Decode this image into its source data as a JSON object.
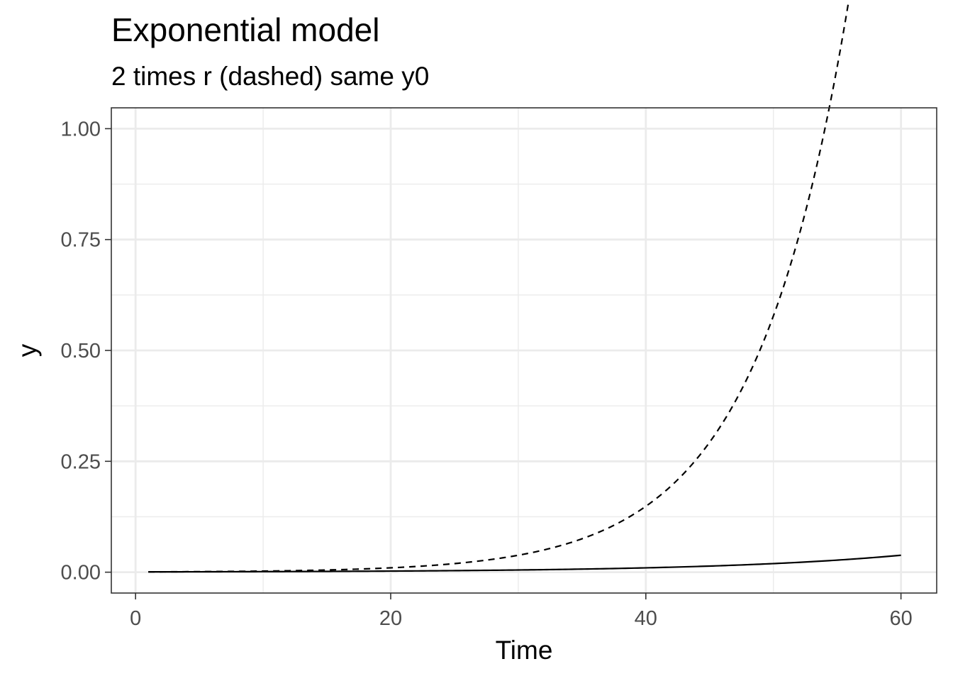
{
  "chart_data": {
    "type": "line",
    "title": "Exponential model",
    "subtitle": "2 times r (dashed) same y0",
    "xlabel": "Time",
    "ylabel": "y",
    "xlim": [
      -1.9,
      62.8
    ],
    "ylim": [
      -0.047,
      1.047
    ],
    "x_ticks": [
      0,
      20,
      40,
      60
    ],
    "x_tick_labels": [
      "0",
      "20",
      "40",
      "60"
    ],
    "x_minor_ticks": [
      10,
      30,
      50
    ],
    "y_ticks": [
      0,
      0.25,
      0.5,
      0.75,
      1.0
    ],
    "y_tick_labels": [
      "0.00",
      "0.25",
      "0.50",
      "0.75",
      "1.00"
    ],
    "y_minor_ticks": [
      0.125,
      0.375,
      0.625,
      0.875
    ],
    "grid": true,
    "legend": "none",
    "series": [
      {
        "style": "solid",
        "color": "#000000",
        "model": {
          "y0": 0.00065,
          "r": 0.0679
        },
        "x_range": [
          1,
          60
        ]
      },
      {
        "style": "dashed",
        "color": "#000000",
        "model": {
          "y0": 0.00065,
          "r": 0.1358
        },
        "x_range": [
          1,
          57.1
        ]
      }
    ]
  }
}
